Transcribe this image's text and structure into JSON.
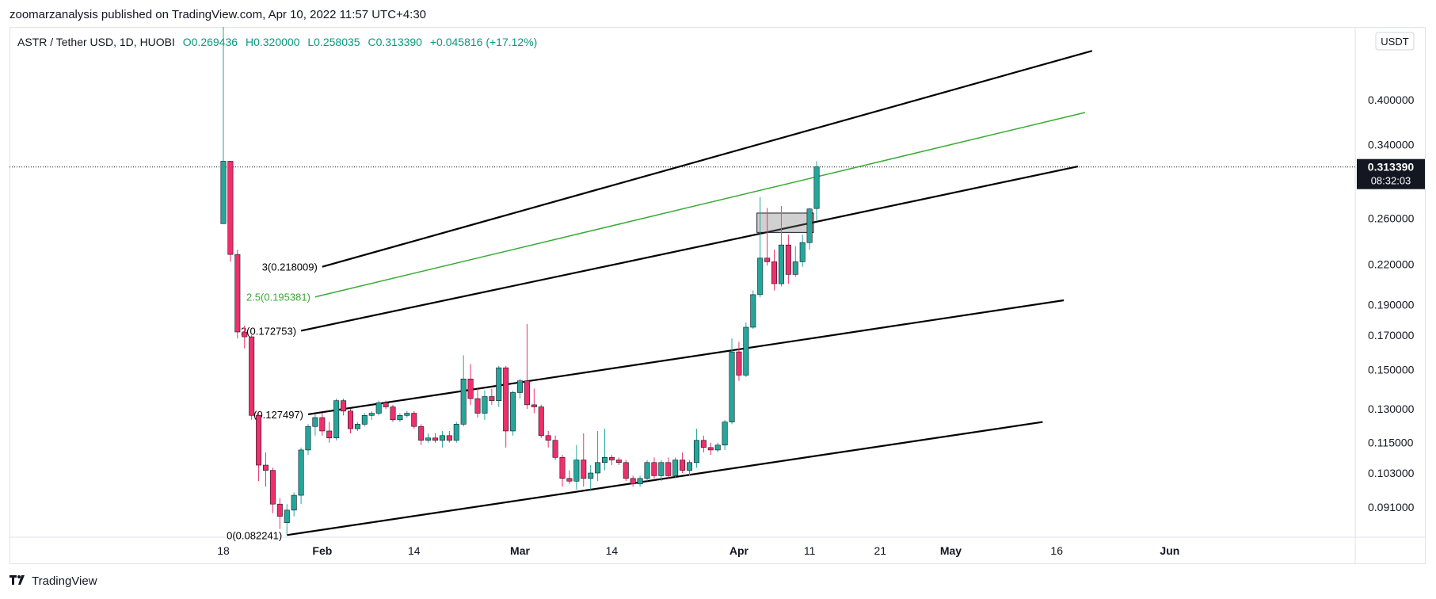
{
  "caption": "zoomarzanalysis published on TradingView.com, Apr 10, 2022 11:57 UTC+4:30",
  "legend": {
    "symbol": "ASTR / Tether USD, 1D, HUOBI",
    "open": "O0.269436",
    "high": "H0.320000",
    "low": "L0.258035",
    "close": "C0.313390",
    "change": "+0.045816 (+17.12%)"
  },
  "currency_badge": "USDT",
  "price_tag": {
    "price": "0.313390",
    "timer": "08:32:03"
  },
  "brand": {
    "name": "TradingView",
    "logo": "tradingview-logo-icon"
  },
  "colors": {
    "up": "#26a69a",
    "down": "#ef2f6b",
    "fib_green": "#3aaa35",
    "line": "#000000",
    "grid_border": "#e0e3eb"
  },
  "chart_data": {
    "type": "candlestick",
    "title": "ASTR / Tether USD, 1D, HUOBI",
    "y_scale": "log",
    "ylim": [
      0.078,
      0.58
    ],
    "y_ticks": [
      "0.400000",
      "0.340000",
      "0.260000",
      "0.220000",
      "0.190000",
      "0.170000",
      "0.150000",
      "0.130000",
      "0.115000",
      "0.103000",
      "0.091000"
    ],
    "x_ticks": [
      {
        "label": "18",
        "date": "2022-01-18"
      },
      {
        "label": "Feb",
        "date": "2022-02-01"
      },
      {
        "label": "14",
        "date": "2022-02-14"
      },
      {
        "label": "Mar",
        "date": "2022-03-01"
      },
      {
        "label": "14",
        "date": "2022-03-14"
      },
      {
        "label": "Apr",
        "date": "2022-04-01"
      },
      {
        "label": "11",
        "date": "2022-04-11"
      },
      {
        "label": "21",
        "date": "2022-04-21"
      },
      {
        "label": "May",
        "date": "2022-05-01"
      },
      {
        "label": "16",
        "date": "2022-05-16"
      },
      {
        "label": "Jun",
        "date": "2022-06-01"
      }
    ],
    "candles": [
      {
        "date": "2022-01-18",
        "o": 0.255,
        "h": 0.58,
        "l": 0.255,
        "c": 0.32
      },
      {
        "date": "2022-01-19",
        "o": 0.32,
        "h": 0.32,
        "l": 0.222,
        "c": 0.228
      },
      {
        "date": "2022-01-20",
        "o": 0.228,
        "h": 0.232,
        "l": 0.168,
        "c": 0.172
      },
      {
        "date": "2022-01-21",
        "o": 0.172,
        "h": 0.176,
        "l": 0.162,
        "c": 0.169
      },
      {
        "date": "2022-01-22",
        "o": 0.169,
        "h": 0.17,
        "l": 0.125,
        "c": 0.127
      },
      {
        "date": "2022-01-23",
        "o": 0.127,
        "h": 0.128,
        "l": 0.1,
        "c": 0.106
      },
      {
        "date": "2022-01-24",
        "o": 0.106,
        "h": 0.111,
        "l": 0.098,
        "c": 0.104
      },
      {
        "date": "2022-01-25",
        "o": 0.104,
        "h": 0.105,
        "l": 0.089,
        "c": 0.092
      },
      {
        "date": "2022-01-26",
        "o": 0.092,
        "h": 0.094,
        "l": 0.084,
        "c": 0.088
      },
      {
        "date": "2022-01-27",
        "o": 0.086,
        "h": 0.092,
        "l": 0.0822,
        "c": 0.09
      },
      {
        "date": "2022-01-28",
        "o": 0.09,
        "h": 0.096,
        "l": 0.088,
        "c": 0.095
      },
      {
        "date": "2022-01-29",
        "o": 0.095,
        "h": 0.113,
        "l": 0.092,
        "c": 0.112
      },
      {
        "date": "2022-01-30",
        "o": 0.112,
        "h": 0.123,
        "l": 0.11,
        "c": 0.122
      },
      {
        "date": "2022-01-31",
        "o": 0.122,
        "h": 0.1275,
        "l": 0.118,
        "c": 0.126
      },
      {
        "date": "2022-02-01",
        "o": 0.126,
        "h": 0.128,
        "l": 0.118,
        "c": 0.12
      },
      {
        "date": "2022-02-02",
        "o": 0.12,
        "h": 0.124,
        "l": 0.115,
        "c": 0.117
      },
      {
        "date": "2022-02-03",
        "o": 0.117,
        "h": 0.135,
        "l": 0.116,
        "c": 0.134
      },
      {
        "date": "2022-02-04",
        "o": 0.134,
        "h": 0.135,
        "l": 0.127,
        "c": 0.129
      },
      {
        "date": "2022-02-05",
        "o": 0.129,
        "h": 0.13,
        "l": 0.119,
        "c": 0.121
      },
      {
        "date": "2022-02-06",
        "o": 0.121,
        "h": 0.124,
        "l": 0.12,
        "c": 0.123
      },
      {
        "date": "2022-02-07",
        "o": 0.123,
        "h": 0.128,
        "l": 0.122,
        "c": 0.127
      },
      {
        "date": "2022-02-08",
        "o": 0.127,
        "h": 0.129,
        "l": 0.125,
        "c": 0.128
      },
      {
        "date": "2022-02-09",
        "o": 0.128,
        "h": 0.134,
        "l": 0.127,
        "c": 0.133
      },
      {
        "date": "2022-02-10",
        "o": 0.133,
        "h": 0.134,
        "l": 0.13,
        "c": 0.131
      },
      {
        "date": "2022-02-11",
        "o": 0.131,
        "h": 0.132,
        "l": 0.124,
        "c": 0.125
      },
      {
        "date": "2022-02-12",
        "o": 0.125,
        "h": 0.128,
        "l": 0.124,
        "c": 0.127
      },
      {
        "date": "2022-02-13",
        "o": 0.127,
        "h": 0.129,
        "l": 0.126,
        "c": 0.128
      },
      {
        "date": "2022-02-14",
        "o": 0.128,
        "h": 0.129,
        "l": 0.121,
        "c": 0.122
      },
      {
        "date": "2022-02-15",
        "o": 0.122,
        "h": 0.123,
        "l": 0.114,
        "c": 0.116
      },
      {
        "date": "2022-02-16",
        "o": 0.116,
        "h": 0.119,
        "l": 0.115,
        "c": 0.117
      },
      {
        "date": "2022-02-17",
        "o": 0.117,
        "h": 0.119,
        "l": 0.115,
        "c": 0.116
      },
      {
        "date": "2022-02-18",
        "o": 0.116,
        "h": 0.12,
        "l": 0.113,
        "c": 0.118
      },
      {
        "date": "2022-02-19",
        "o": 0.118,
        "h": 0.12,
        "l": 0.115,
        "c": 0.116
      },
      {
        "date": "2022-02-20",
        "o": 0.116,
        "h": 0.124,
        "l": 0.115,
        "c": 0.123
      },
      {
        "date": "2022-02-21",
        "o": 0.123,
        "h": 0.158,
        "l": 0.122,
        "c": 0.145
      },
      {
        "date": "2022-02-22",
        "o": 0.145,
        "h": 0.153,
        "l": 0.132,
        "c": 0.135
      },
      {
        "date": "2022-02-23",
        "o": 0.135,
        "h": 0.14,
        "l": 0.126,
        "c": 0.128
      },
      {
        "date": "2022-02-24",
        "o": 0.128,
        "h": 0.139,
        "l": 0.125,
        "c": 0.136
      },
      {
        "date": "2022-02-25",
        "o": 0.136,
        "h": 0.14,
        "l": 0.132,
        "c": 0.134
      },
      {
        "date": "2022-02-26",
        "o": 0.134,
        "h": 0.152,
        "l": 0.131,
        "c": 0.151
      },
      {
        "date": "2022-02-27",
        "o": 0.151,
        "h": 0.152,
        "l": 0.113,
        "c": 0.12
      },
      {
        "date": "2022-02-28",
        "o": 0.12,
        "h": 0.139,
        "l": 0.118,
        "c": 0.138
      },
      {
        "date": "2022-03-01",
        "o": 0.138,
        "h": 0.145,
        "l": 0.135,
        "c": 0.144
      },
      {
        "date": "2022-03-02",
        "o": 0.144,
        "h": 0.177,
        "l": 0.13,
        "c": 0.132
      },
      {
        "date": "2022-03-03",
        "o": 0.132,
        "h": 0.14,
        "l": 0.128,
        "c": 0.131
      },
      {
        "date": "2022-03-04",
        "o": 0.131,
        "h": 0.132,
        "l": 0.117,
        "c": 0.118
      },
      {
        "date": "2022-03-05",
        "o": 0.118,
        "h": 0.12,
        "l": 0.113,
        "c": 0.116
      },
      {
        "date": "2022-03-06",
        "o": 0.116,
        "h": 0.118,
        "l": 0.108,
        "c": 0.109
      },
      {
        "date": "2022-03-07",
        "o": 0.109,
        "h": 0.11,
        "l": 0.098,
        "c": 0.101
      },
      {
        "date": "2022-03-08",
        "o": 0.101,
        "h": 0.104,
        "l": 0.099,
        "c": 0.1
      },
      {
        "date": "2022-03-09",
        "o": 0.1,
        "h": 0.114,
        "l": 0.097,
        "c": 0.108
      },
      {
        "date": "2022-03-10",
        "o": 0.108,
        "h": 0.119,
        "l": 0.098,
        "c": 0.101
      },
      {
        "date": "2022-03-11",
        "o": 0.101,
        "h": 0.106,
        "l": 0.097,
        "c": 0.103
      },
      {
        "date": "2022-03-12",
        "o": 0.103,
        "h": 0.12,
        "l": 0.1,
        "c": 0.107
      },
      {
        "date": "2022-03-13",
        "o": 0.107,
        "h": 0.121,
        "l": 0.104,
        "c": 0.109
      },
      {
        "date": "2022-03-14",
        "o": 0.109,
        "h": 0.11,
        "l": 0.106,
        "c": 0.108
      },
      {
        "date": "2022-03-15",
        "o": 0.108,
        "h": 0.109,
        "l": 0.106,
        "c": 0.107
      },
      {
        "date": "2022-03-16",
        "o": 0.107,
        "h": 0.108,
        "l": 0.1,
        "c": 0.101
      },
      {
        "date": "2022-03-17",
        "o": 0.101,
        "h": 0.102,
        "l": 0.098,
        "c": 0.099
      },
      {
        "date": "2022-03-18",
        "o": 0.099,
        "h": 0.102,
        "l": 0.098,
        "c": 0.101
      },
      {
        "date": "2022-03-19",
        "o": 0.101,
        "h": 0.108,
        "l": 0.1,
        "c": 0.107
      },
      {
        "date": "2022-03-20",
        "o": 0.107,
        "h": 0.109,
        "l": 0.101,
        "c": 0.102
      },
      {
        "date": "2022-03-21",
        "o": 0.102,
        "h": 0.108,
        "l": 0.1,
        "c": 0.107
      },
      {
        "date": "2022-03-22",
        "o": 0.107,
        "h": 0.109,
        "l": 0.101,
        "c": 0.102
      },
      {
        "date": "2022-03-23",
        "o": 0.102,
        "h": 0.109,
        "l": 0.101,
        "c": 0.108
      },
      {
        "date": "2022-03-24",
        "o": 0.108,
        "h": 0.111,
        "l": 0.103,
        "c": 0.104
      },
      {
        "date": "2022-03-25",
        "o": 0.104,
        "h": 0.108,
        "l": 0.102,
        "c": 0.107
      },
      {
        "date": "2022-03-26",
        "o": 0.107,
        "h": 0.121,
        "l": 0.105,
        "c": 0.116
      },
      {
        "date": "2022-03-27",
        "o": 0.116,
        "h": 0.118,
        "l": 0.111,
        "c": 0.113
      },
      {
        "date": "2022-03-28",
        "o": 0.113,
        "h": 0.115,
        "l": 0.11,
        "c": 0.112
      },
      {
        "date": "2022-03-29",
        "o": 0.112,
        "h": 0.115,
        "l": 0.111,
        "c": 0.114
      },
      {
        "date": "2022-03-30",
        "o": 0.114,
        "h": 0.125,
        "l": 0.112,
        "c": 0.124
      },
      {
        "date": "2022-03-31",
        "o": 0.124,
        "h": 0.168,
        "l": 0.123,
        "c": 0.16
      },
      {
        "date": "2022-04-01",
        "o": 0.16,
        "h": 0.166,
        "l": 0.144,
        "c": 0.147
      },
      {
        "date": "2022-04-02",
        "o": 0.147,
        "h": 0.178,
        "l": 0.146,
        "c": 0.175
      },
      {
        "date": "2022-04-03",
        "o": 0.175,
        "h": 0.2,
        "l": 0.174,
        "c": 0.197
      },
      {
        "date": "2022-04-04",
        "o": 0.197,
        "h": 0.281,
        "l": 0.195,
        "c": 0.225
      },
      {
        "date": "2022-04-05",
        "o": 0.225,
        "h": 0.27,
        "l": 0.219,
        "c": 0.222
      },
      {
        "date": "2022-04-06",
        "o": 0.222,
        "h": 0.232,
        "l": 0.2,
        "c": 0.205
      },
      {
        "date": "2022-04-07",
        "o": 0.205,
        "h": 0.272,
        "l": 0.203,
        "c": 0.236
      },
      {
        "date": "2022-04-08",
        "o": 0.236,
        "h": 0.245,
        "l": 0.205,
        "c": 0.212
      },
      {
        "date": "2022-04-09",
        "o": 0.212,
        "h": 0.235,
        "l": 0.21,
        "c": 0.222
      },
      {
        "date": "2022-04-10",
        "o": 0.222,
        "h": 0.245,
        "l": 0.218,
        "c": 0.238
      },
      {
        "date": "2022-04-11",
        "o": 0.238,
        "h": 0.27,
        "l": 0.232,
        "c": 0.269
      },
      {
        "date": "2022-04-12",
        "o": 0.269436,
        "h": 0.32,
        "l": 0.258035,
        "c": 0.31339
      }
    ],
    "fib_channel_levels": [
      {
        "label": "0(0.082241)",
        "value": 0.082241,
        "color": "#000000"
      },
      {
        "label": "(0.127497)",
        "value": 0.127497,
        "color": "#000000"
      },
      {
        "label": "2(0.172753)",
        "value": 0.172753,
        "color": "#000000"
      },
      {
        "label": "2.5(0.195381)",
        "value": 0.195381,
        "color": "#3aaa35"
      },
      {
        "label": "3(0.218009)",
        "value": 0.218009,
        "color": "#000000"
      }
    ],
    "channel_lines": [
      {
        "start": {
          "date": "2022-01-27",
          "price": 0.0822
        },
        "end": {
          "date": "2022-05-14",
          "price": 0.124
        },
        "color": "#000000"
      },
      {
        "start": {
          "date": "2022-01-30",
          "price": 0.1275
        },
        "end": {
          "date": "2022-05-17",
          "price": 0.193
        },
        "color": "#000000"
      },
      {
        "start": {
          "date": "2022-01-29",
          "price": 0.172753
        },
        "end": {
          "date": "2022-05-19",
          "price": 0.314
        },
        "color": "#000000"
      },
      {
        "start": {
          "date": "2022-01-31",
          "price": 0.195381
        },
        "end": {
          "date": "2022-05-20",
          "price": 0.382
        },
        "color": "#3aaa35"
      },
      {
        "start": {
          "date": "2022-02-01",
          "price": 0.218009
        },
        "end": {
          "date": "2022-05-21",
          "price": 0.478
        },
        "color": "#000000"
      }
    ],
    "highlight_box": {
      "start_date": "2022-04-04",
      "end_date": "2022-04-12",
      "top": 0.265,
      "bottom": 0.247
    },
    "last_price": 0.31339
  }
}
